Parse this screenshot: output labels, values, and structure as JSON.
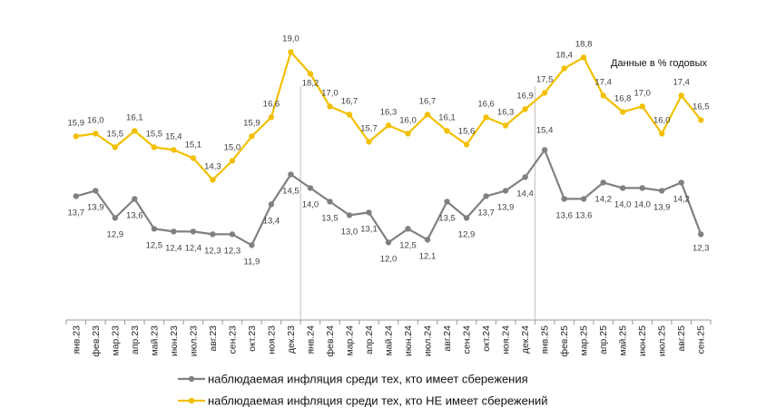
{
  "chart_data": {
    "type": "line",
    "title": "",
    "note": "Данные в % годовых",
    "xlabel": "",
    "ylabel": "",
    "ylim": [
      11,
      20
    ],
    "grid": false,
    "legend_position": "bottom",
    "categories": [
      "янв.23",
      "фев.23",
      "мар.23",
      "апр.23",
      "май.23",
      "июн.23",
      "июл.23",
      "авг.23",
      "сен.23",
      "окт.23",
      "ноя.23",
      "дек.23",
      "янв.24",
      "фев.24",
      "мар.24",
      "апр.24",
      "май.24",
      "июн.24",
      "июл.24",
      "авг.24",
      "сен.24",
      "окт.24",
      "ноя.24",
      "дек.24",
      "янв.25",
      "фев.25",
      "мар.25",
      "апр.25",
      "май.25",
      "июн.25",
      "июл.25",
      "авг.25",
      "сен.25"
    ],
    "year_dividers_after": [
      "дек.23",
      "дек.24"
    ],
    "series": [
      {
        "name": "наблюдаемая  инфляция  среди тех,  кто имеет  сбережения",
        "color": "#808080",
        "values": [
          13.7,
          13.9,
          12.9,
          13.6,
          12.5,
          12.4,
          12.4,
          12.3,
          12.3,
          11.9,
          13.4,
          14.5,
          14.0,
          13.5,
          13.0,
          13.1,
          12.0,
          12.5,
          12.1,
          13.5,
          12.9,
          13.7,
          13.9,
          14.4,
          15.4,
          13.6,
          13.6,
          14.2,
          14.0,
          14.0,
          13.9,
          14.2,
          12.3
        ],
        "labels": [
          "13,7",
          "13,9",
          "12,9",
          "13,6",
          "12,5",
          "12,4",
          "12,4",
          "12,3",
          "12,3",
          "11,9",
          "13,4",
          "14,5",
          "14,0",
          "13,5",
          "13,0",
          "13,1",
          "12,0",
          "12,5",
          "12,1",
          "13,5",
          "12,9",
          "13,7",
          "13,9",
          "14,4",
          "15,4",
          "13,6",
          "13,6",
          "14,2",
          "14,0",
          "14,0",
          "13,9",
          "14,2",
          "12,3"
        ]
      },
      {
        "name": "наблюдаемая  инфляция  среди тех,  кто НЕ  имеет  сбережений",
        "color": "#F2C000",
        "values": [
          15.9,
          16.0,
          15.5,
          16.1,
          15.5,
          15.4,
          15.1,
          14.3,
          15.0,
          15.9,
          16.6,
          19.0,
          18.2,
          17.0,
          16.7,
          15.7,
          16.3,
          16.0,
          16.7,
          16.1,
          15.6,
          16.6,
          16.3,
          16.9,
          17.5,
          18.4,
          18.8,
          17.4,
          16.8,
          17.0,
          16.0,
          17.4,
          16.5
        ],
        "labels": [
          "15,9",
          "16,0",
          "15,5",
          "16,1",
          "15,5",
          "15,4",
          "15,1",
          "14,3",
          "15,0",
          "15,9",
          "16,6",
          "19,0",
          "18,2",
          "17,0",
          "16,7",
          "15,7",
          "16,3",
          "16,0",
          "16,7",
          "16,1",
          "15,6",
          "16,6",
          "16,3",
          "16,9",
          "17,5",
          "18,4",
          "18,8",
          "17,4",
          "16,8",
          "17,0",
          "16,0",
          "17,4",
          "16,5"
        ]
      }
    ]
  }
}
